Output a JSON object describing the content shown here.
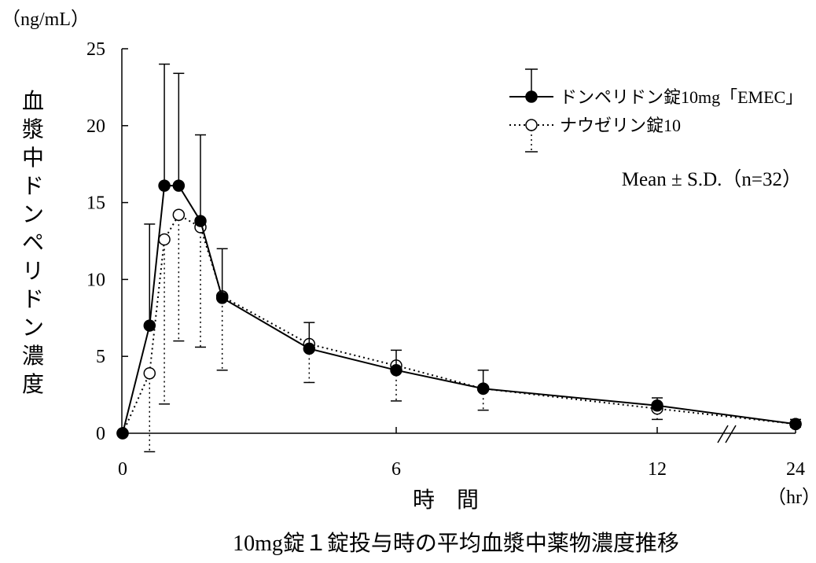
{
  "chart_data": {
    "type": "line",
    "title": "",
    "caption": "10mg錠１錠投与時の平均血漿中薬物濃度推移",
    "y_unit": "（ng/mL）",
    "ylabel": "血漿中ドンペリドン濃度",
    "xlabel": "時　間",
    "x_unit": "（hr）",
    "ylim": [
      0,
      25
    ],
    "y_ticks": [
      "0",
      "5",
      "10",
      "15",
      "20",
      "25"
    ],
    "x_ticks": [
      "0",
      "6",
      "12",
      "24"
    ],
    "x_axis_break": true,
    "stats_label": "Mean ± S.D.（n=32）",
    "legend_position": "top-right",
    "series": [
      {
        "name": "ドンペリドン錠10mg「EMEC」",
        "marker": "filled-circle",
        "line": "solid",
        "x": [
          0,
          0.33,
          0.67,
          1,
          1.5,
          2,
          4,
          6,
          8,
          12,
          24
        ],
        "y": [
          0,
          7.0,
          16.1,
          16.1,
          13.8,
          8.8,
          5.5,
          4.1,
          2.9,
          1.8,
          0.6
        ],
        "sd_upper": [
          0,
          13.6,
          24.0,
          23.4,
          19.4,
          12.0,
          7.2,
          5.4,
          4.1,
          2.3,
          0.9
        ],
        "sd_lower": null
      },
      {
        "name": "ナウゼリン錠10",
        "marker": "open-circle",
        "line": "dotted",
        "x": [
          0,
          0.33,
          0.67,
          1,
          1.5,
          2,
          4,
          6,
          8,
          12,
          24
        ],
        "y": [
          0,
          3.9,
          12.6,
          14.2,
          13.4,
          8.9,
          5.8,
          4.4,
          2.9,
          1.6,
          0.6
        ],
        "sd_upper": null,
        "sd_lower": [
          0,
          -1.2,
          1.9,
          6.0,
          5.6,
          4.1,
          3.3,
          2.1,
          1.5,
          0.9,
          0.4
        ]
      }
    ]
  }
}
